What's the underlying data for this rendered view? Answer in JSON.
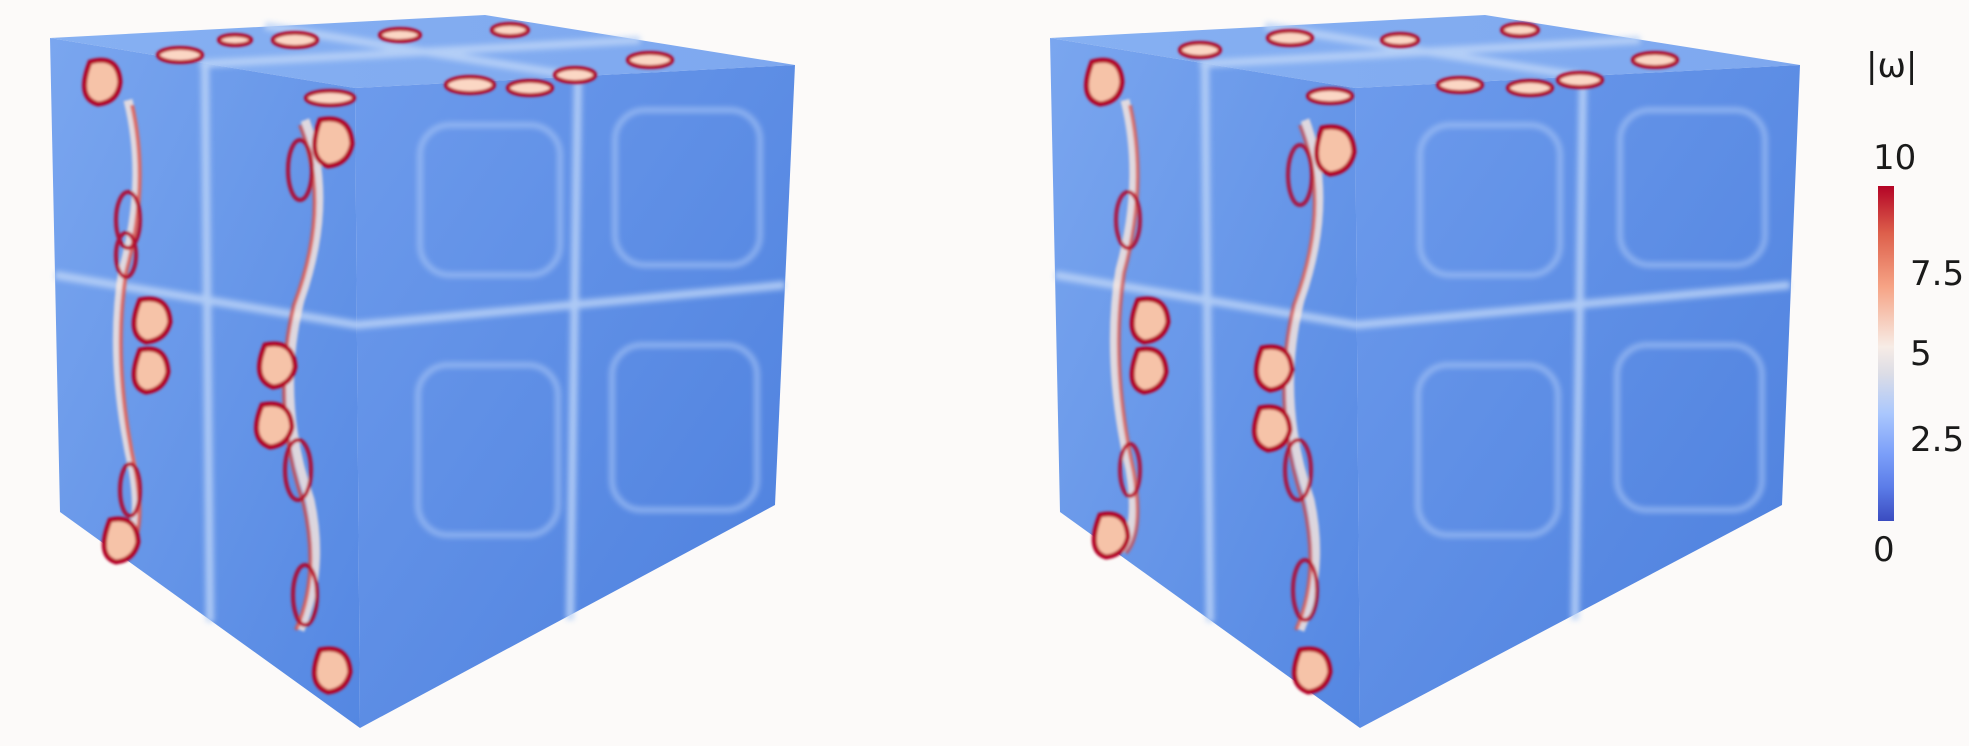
{
  "colorbar": {
    "title": "|ω|",
    "ticks": [
      "10",
      "7.5",
      "5",
      "2.5",
      "0"
    ],
    "range": [
      0,
      10
    ],
    "colormap": [
      "#b40426",
      "#dd5f4b",
      "#f6a385",
      "#f7ece6",
      "#dcdde6",
      "#aac7fd",
      "#7b9ff9",
      "#3b4cc0"
    ]
  },
  "colors": {
    "background": "#fcfaf9",
    "cube_base": "#5f93e8",
    "cube_face_light": "#7aa8f0",
    "vortex_red": "#c81a1e",
    "vortex_light": "#fde8dc"
  },
  "panels": [
    {
      "name": "left-cube"
    },
    {
      "name": "right-cube"
    }
  ]
}
